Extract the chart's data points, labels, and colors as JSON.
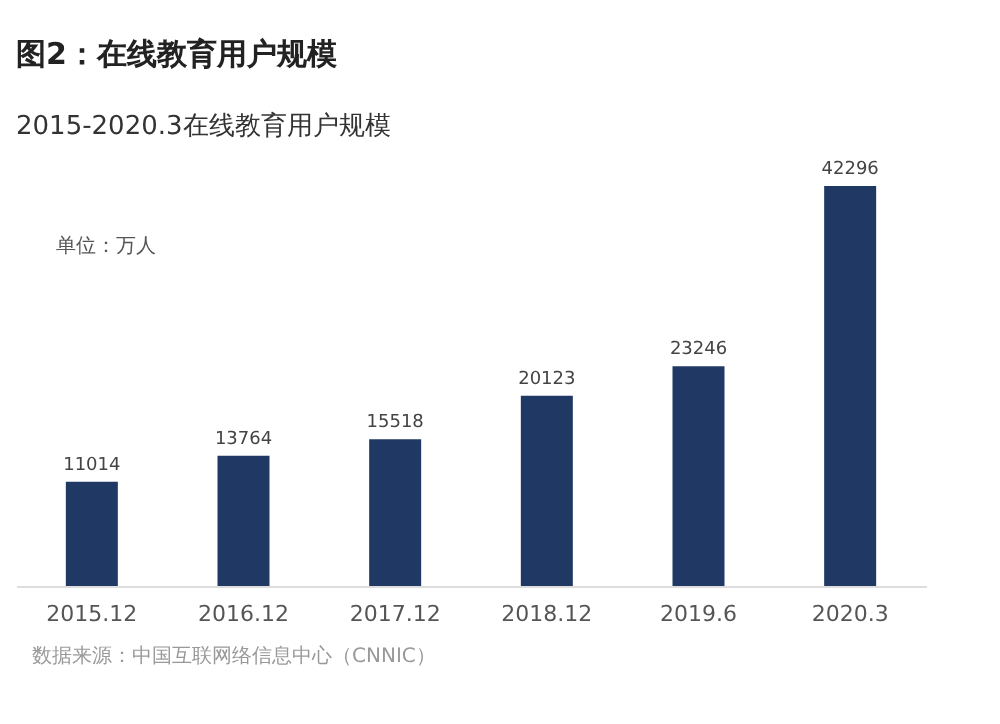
{
  "chart_data": {
    "type": "bar",
    "title": "图2：在线教育用户规模",
    "subtitle": "2015-2020.3在线教育用户规模",
    "categories": [
      "2015.12",
      "2016.12",
      "2017.12",
      "2018.12",
      "2019.6",
      "2020.3"
    ],
    "values": [
      11014,
      13764,
      15518,
      20123,
      23246,
      42296
    ],
    "color": "#1f3864",
    "data_labels": true,
    "grid": false,
    "annotations": [
      "单位：万人",
      "数据来源：中国互联网络信息中心（CNNIC）"
    ]
  }
}
